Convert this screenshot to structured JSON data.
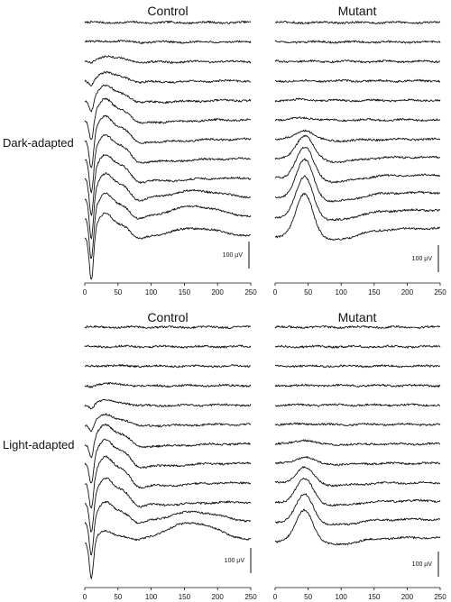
{
  "chart_data": [
    {
      "type": "line",
      "panel": "dark-control",
      "title": "Control",
      "row_label": "Dark-adapted",
      "xlim": [
        0,
        250
      ],
      "x_ticks": [
        0,
        50,
        100,
        150,
        200,
        250
      ],
      "scale_bar": {
        "label": "100 µV",
        "value": 100
      },
      "series": [
        {
          "a": 0,
          "b": 0,
          "c": 0,
          "d": 0
        },
        {
          "a": 0,
          "b": 5,
          "c": 0,
          "d": 0
        },
        {
          "a": 8,
          "b": 22,
          "c": 0,
          "d": 0
        },
        {
          "a": 20,
          "b": 35,
          "c": 0,
          "d": 0
        },
        {
          "a": 45,
          "b": 60,
          "c": 0,
          "d": 0
        },
        {
          "a": 85,
          "b": 85,
          "c": 0,
          "d": 0
        },
        {
          "a": 120,
          "b": 95,
          "c": 0,
          "d": 0
        },
        {
          "a": 140,
          "b": 100,
          "c": 0,
          "d": 0
        },
        {
          "a": 150,
          "b": 100,
          "c": 0,
          "d": 0
        },
        {
          "a": 160,
          "b": 100,
          "c": 30,
          "d": 0
        },
        {
          "a": 165,
          "b": 95,
          "c": 45,
          "d": 0
        },
        {
          "a": 170,
          "b": 95,
          "c": 35,
          "d": 0
        }
      ]
    },
    {
      "type": "line",
      "panel": "dark-mutant",
      "title": "Mutant",
      "xlim": [
        0,
        250
      ],
      "x_ticks": [
        0,
        50,
        100,
        150,
        200,
        250
      ],
      "scale_bar": {
        "label": "100 µV",
        "value": 100
      },
      "series": [
        {
          "a": 0,
          "b": 0,
          "c": 0,
          "d": 0
        },
        {
          "a": 0,
          "b": 0,
          "c": 0,
          "d": 0
        },
        {
          "a": 0,
          "b": 0,
          "c": 0,
          "d": 0
        },
        {
          "a": 0,
          "b": 0,
          "c": 0,
          "d": 0
        },
        {
          "a": 0,
          "b": 3,
          "c": 0,
          "d": 0
        },
        {
          "a": 0,
          "b": 8,
          "c": 0,
          "d": 0
        },
        {
          "a": 0,
          "b": 35,
          "c": 0,
          "d": 0
        },
        {
          "a": 0,
          "b": 90,
          "c": 0,
          "d": 6
        },
        {
          "a": 0,
          "b": 120,
          "c": 0,
          "d": 12
        },
        {
          "a": 0,
          "b": 145,
          "c": 0,
          "d": 20
        },
        {
          "a": 0,
          "b": 155,
          "c": 0,
          "d": 28
        },
        {
          "a": 0,
          "b": 165,
          "c": 0,
          "d": 32
        }
      ]
    },
    {
      "type": "line",
      "panel": "light-control",
      "title": "Control",
      "row_label": "Light-adapted",
      "xlim": [
        0,
        250
      ],
      "x_ticks": [
        0,
        50,
        100,
        150,
        200,
        250
      ],
      "scale_bar": {
        "label": "100 µV",
        "value": 100
      },
      "series": [
        {
          "a": 0,
          "b": 0,
          "c": 0,
          "d": 0
        },
        {
          "a": 0,
          "b": 0,
          "c": 0,
          "d": 0
        },
        {
          "a": 0,
          "b": 2,
          "c": 0,
          "d": 0
        },
        {
          "a": 5,
          "b": 8,
          "c": 0,
          "d": 0
        },
        {
          "a": 15,
          "b": 20,
          "c": 0,
          "d": 0
        },
        {
          "a": 30,
          "b": 40,
          "c": 0,
          "d": 0
        },
        {
          "a": 60,
          "b": 80,
          "c": 0,
          "d": 0
        },
        {
          "a": 90,
          "b": 100,
          "c": 0,
          "d": 0
        },
        {
          "a": 110,
          "b": 110,
          "c": 0,
          "d": 0
        },
        {
          "a": 120,
          "b": 100,
          "c": 0,
          "d": 0
        },
        {
          "a": 130,
          "b": 80,
          "c": 40,
          "d": 0
        },
        {
          "a": 140,
          "b": 40,
          "c": 70,
          "d": 0
        }
      ]
    },
    {
      "type": "line",
      "panel": "light-mutant",
      "title": "Mutant",
      "xlim": [
        0,
        250
      ],
      "x_ticks": [
        0,
        50,
        100,
        150,
        200,
        250
      ],
      "scale_bar": {
        "label": "100 µV",
        "value": 100
      },
      "series": [
        {
          "a": 0,
          "b": 0,
          "c": 0,
          "d": 0
        },
        {
          "a": 0,
          "b": 0,
          "c": 0,
          "d": 0
        },
        {
          "a": 0,
          "b": 0,
          "c": 0,
          "d": 0
        },
        {
          "a": 0,
          "b": 0,
          "c": 0,
          "d": 0
        },
        {
          "a": 0,
          "b": 0,
          "c": 0,
          "d": 0
        },
        {
          "a": 0,
          "b": 3,
          "c": 0,
          "d": 0
        },
        {
          "a": 0,
          "b": 15,
          "c": 0,
          "d": 0
        },
        {
          "a": 0,
          "b": 25,
          "c": 0,
          "d": 0
        },
        {
          "a": 0,
          "b": 60,
          "c": 0,
          "d": 0
        },
        {
          "a": 0,
          "b": 90,
          "c": 0,
          "d": 6
        },
        {
          "a": 0,
          "b": 105,
          "c": 0,
          "d": 10
        },
        {
          "a": 0,
          "b": 120,
          "c": 0,
          "d": 14
        }
      ]
    }
  ]
}
